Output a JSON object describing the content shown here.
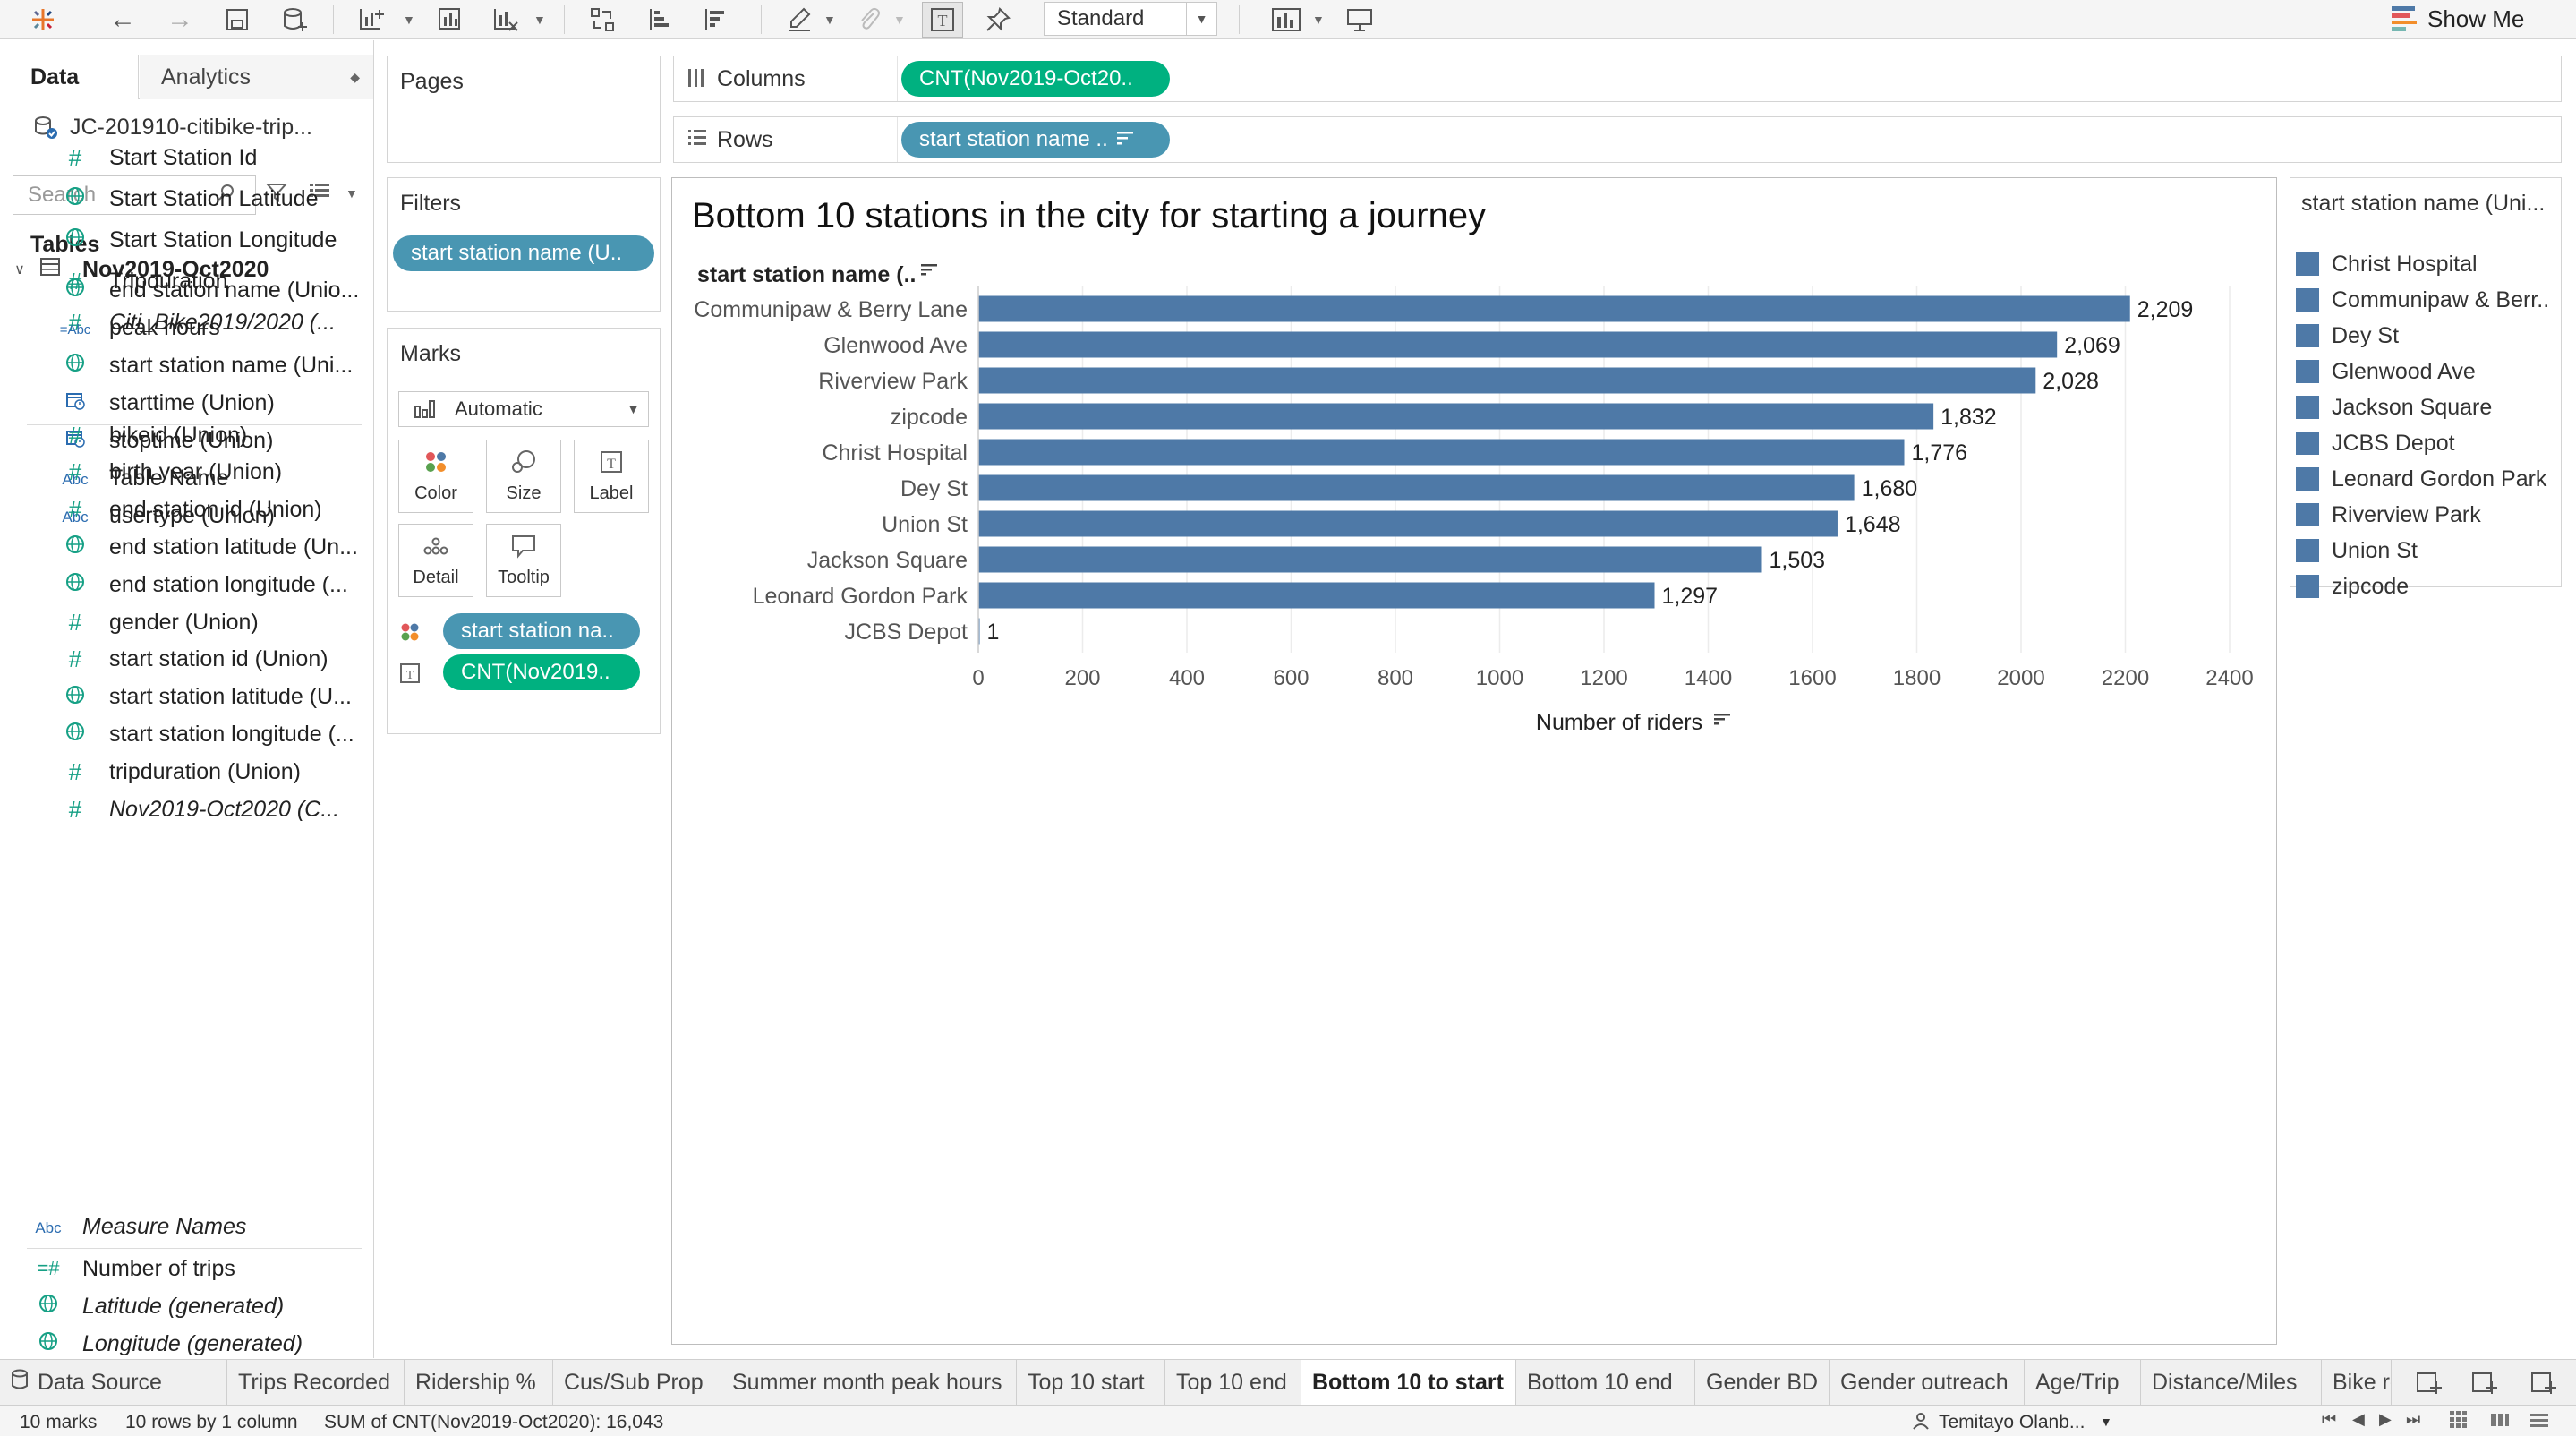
{
  "toolbar": {
    "fit_value": "Standard",
    "show_me": "Show Me"
  },
  "data_pane": {
    "tab_data": "Data",
    "tab_analytics": "Analytics",
    "datasource": "JC-201910-citibike-trip...",
    "search_placeholder": "Search",
    "tables_heading": "Tables",
    "fields_group1": [
      {
        "icon": "num",
        "label": "Start Station Id",
        "italic": false
      },
      {
        "icon": "geo",
        "label": "Start Station Latitude",
        "italic": false
      },
      {
        "icon": "geo",
        "label": "Start Station Longitude",
        "italic": false
      },
      {
        "icon": "num",
        "label": "Tripduration",
        "italic": false
      },
      {
        "icon": "num",
        "label": "Citi_Bike2019/2020 (...",
        "italic": true
      }
    ],
    "table_name": "Nov2019-Oct2020",
    "fields_group2": [
      {
        "icon": "geo",
        "label": "end station name (Unio...",
        "italic": false
      },
      {
        "icon": "abc2",
        "label": "peak hours",
        "italic": false
      },
      {
        "icon": "geo",
        "label": "start station name (Uni...",
        "italic": false
      },
      {
        "icon": "date",
        "label": "starttime (Union)",
        "italic": false
      },
      {
        "icon": "date",
        "label": "stoptime (Union)",
        "italic": false
      },
      {
        "icon": "abc",
        "label": "Table Name",
        "italic": false
      },
      {
        "icon": "abc",
        "label": "usertype (Union)",
        "italic": false
      }
    ],
    "fields_group3": [
      {
        "icon": "num",
        "label": "bikeid (Union)",
        "italic": false
      },
      {
        "icon": "num",
        "label": "birth year (Union)",
        "italic": false
      },
      {
        "icon": "num",
        "label": "end station id (Union)",
        "italic": false
      },
      {
        "icon": "geo",
        "label": "end station latitude (Un...",
        "italic": false
      },
      {
        "icon": "geo",
        "label": "end station longitude (...",
        "italic": false
      },
      {
        "icon": "num",
        "label": "gender (Union)",
        "italic": false
      },
      {
        "icon": "num",
        "label": "start station id (Union)",
        "italic": false
      },
      {
        "icon": "geo",
        "label": "start station latitude (U...",
        "italic": false
      },
      {
        "icon": "geo",
        "label": "start station longitude (...",
        "italic": false
      },
      {
        "icon": "num",
        "label": "tripduration (Union)",
        "italic": false
      },
      {
        "icon": "num",
        "label": "Nov2019-Oct2020 (C...",
        "italic": true
      }
    ],
    "measure_names": "Measure Names",
    "fields_group4": [
      {
        "icon": "num2",
        "label": "Number of trips",
        "italic": false
      },
      {
        "icon": "geo",
        "label": "Latitude (generated)",
        "italic": true
      },
      {
        "icon": "geo",
        "label": "Longitude (generated)",
        "italic": true
      }
    ]
  },
  "pages": {
    "title": "Pages"
  },
  "filters": {
    "title": "Filters",
    "pill": "start station name (U.."
  },
  "marks": {
    "title": "Marks",
    "type": "Automatic",
    "buttons": [
      "Color",
      "Size",
      "Label",
      "Detail",
      "Tooltip"
    ],
    "pill_color": "start station na..",
    "pill_label": "CNT(Nov2019.."
  },
  "shelves": {
    "columns_label": "Columns",
    "columns_pill": "CNT(Nov2019-Oct20..",
    "rows_label": "Rows",
    "rows_pill": "start station name .."
  },
  "viz": {
    "title": "Bottom 10 stations in the city for starting a journey",
    "row_header": "start station name (..",
    "bar_color": "#4e79a7"
  },
  "chart_data": {
    "type": "bar",
    "orientation": "horizontal",
    "title": "Bottom 10 stations in the city for starting a journey",
    "ylabel": "start station name (..",
    "xlabel": "Number of riders",
    "categories": [
      "Communipaw & Berry Lane",
      "Glenwood Ave",
      "Riverview Park",
      "zipcode",
      "Christ Hospital",
      "Dey St",
      "Union St",
      "Jackson Square",
      "Leonard Gordon Park",
      "JCBS Depot"
    ],
    "values": [
      2209,
      2069,
      2028,
      1832,
      1776,
      1680,
      1648,
      1503,
      1297,
      1
    ],
    "data_labels": [
      "2,209",
      "2,069",
      "2,028",
      "1,832",
      "1,776",
      "1,680",
      "1,648",
      "1,503",
      "1,297",
      "1"
    ],
    "xlim": [
      0,
      2400
    ],
    "xticks": [
      0,
      200,
      400,
      600,
      800,
      1000,
      1200,
      1400,
      1600,
      1800,
      2000,
      2200,
      2400
    ],
    "grid": true,
    "legend": "right"
  },
  "legend": {
    "title": "start station name (Uni...",
    "items": [
      "Christ Hospital",
      "Communipaw & Berr..",
      "Dey St",
      "Glenwood Ave",
      "Jackson Square",
      "JCBS Depot",
      "Leonard Gordon Park",
      "Riverview Park",
      "Union St",
      "zipcode"
    ]
  },
  "sheet_tabs": {
    "items": [
      "Data Source",
      "Trips Recorded",
      "Ridership %",
      "Cus/Sub Prop",
      "Summer month peak hours",
      "Top 10 start",
      "Top 10 end",
      "Bottom 10 to start",
      "Bottom 10 end",
      "Gender BD",
      "Gender outreach",
      "Age/Trip",
      "Distance/Miles",
      "Bike re"
    ],
    "active": "Bottom 10 to start"
  },
  "status": {
    "marks": "10 marks",
    "rows": "10 rows by 1 column",
    "sum": "SUM of CNT(Nov2019-Oct2020): 16,043",
    "user": "Temitayo Olanb..."
  }
}
